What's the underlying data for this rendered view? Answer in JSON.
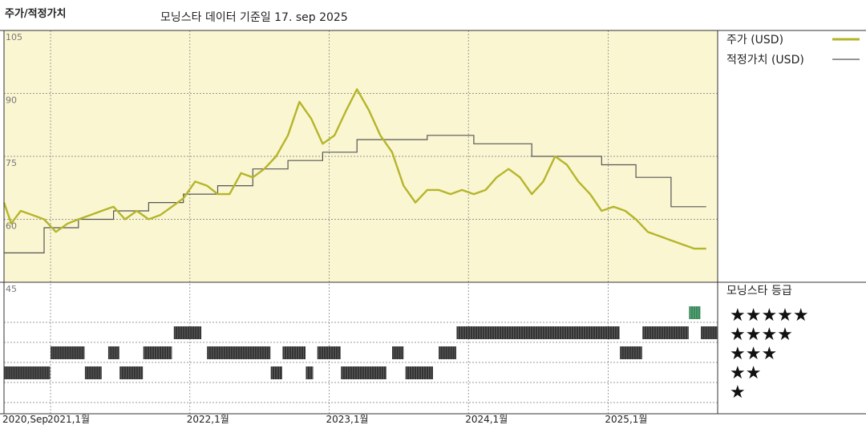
{
  "header": {
    "title": "주가/적정가치",
    "subtitle": "모닝스타 데이터 기준일 17. sep 2025"
  },
  "legend": {
    "price_label": "주가 (USD)",
    "fair_label": "적정가치 (USD)",
    "rating_title": "모닝스타 등급"
  },
  "colors": {
    "price": "#b5b52a",
    "fair": "#555555",
    "plot_bg": "#faf6d2",
    "rating_bar": "#333333",
    "rating_highlight": "#3a8a5a"
  },
  "rating_star_labels": [
    "★★★★★",
    "★★★★",
    "★★★",
    "★★",
    "★"
  ],
  "chart_data": {
    "type": "line",
    "title": "주가/적정가치",
    "y_ticks": [
      "105",
      "90",
      "75",
      "60",
      "45"
    ],
    "ylim": [
      45,
      105
    ],
    "x_ticks": [
      "2020,Sep",
      "2021,1월",
      "2022,1월",
      "2023,1월",
      "2024,1월",
      "2025,1월"
    ],
    "xlim": [
      "2020-09-01",
      "2025-10-15"
    ],
    "series": [
      {
        "name": "주가 (USD)",
        "points": [
          [
            "2020-09-01",
            64
          ],
          [
            "2020-09-20",
            59
          ],
          [
            "2020-10-15",
            62
          ],
          [
            "2020-11-15",
            61
          ],
          [
            "2020-12-15",
            60
          ],
          [
            "2021-01-15",
            57
          ],
          [
            "2021-02-15",
            59
          ],
          [
            "2021-03-15",
            60
          ],
          [
            "2021-04-15",
            61
          ],
          [
            "2021-05-15",
            62
          ],
          [
            "2021-06-15",
            63
          ],
          [
            "2021-07-15",
            60
          ],
          [
            "2021-08-15",
            62
          ],
          [
            "2021-09-15",
            60
          ],
          [
            "2021-10-15",
            61
          ],
          [
            "2021-11-15",
            63
          ],
          [
            "2021-12-15",
            65
          ],
          [
            "2022-01-15",
            69
          ],
          [
            "2022-02-15",
            68
          ],
          [
            "2022-03-15",
            66
          ],
          [
            "2022-04-15",
            66
          ],
          [
            "2022-05-15",
            71
          ],
          [
            "2022-06-15",
            70
          ],
          [
            "2022-07-15",
            72
          ],
          [
            "2022-08-15",
            75
          ],
          [
            "2022-09-15",
            80
          ],
          [
            "2022-10-15",
            88
          ],
          [
            "2022-11-15",
            84
          ],
          [
            "2022-12-15",
            78
          ],
          [
            "2023-01-15",
            80
          ],
          [
            "2023-02-15",
            86
          ],
          [
            "2023-03-15",
            91
          ],
          [
            "2023-04-15",
            86
          ],
          [
            "2023-05-15",
            80
          ],
          [
            "2023-06-15",
            76
          ],
          [
            "2023-07-15",
            68
          ],
          [
            "2023-08-15",
            64
          ],
          [
            "2023-09-15",
            67
          ],
          [
            "2023-10-15",
            67
          ],
          [
            "2023-11-15",
            66
          ],
          [
            "2023-12-15",
            67
          ],
          [
            "2024-01-15",
            66
          ],
          [
            "2024-02-15",
            67
          ],
          [
            "2024-03-15",
            70
          ],
          [
            "2024-04-15",
            72
          ],
          [
            "2024-05-15",
            70
          ],
          [
            "2024-06-15",
            66
          ],
          [
            "2024-07-15",
            69
          ],
          [
            "2024-08-15",
            75
          ],
          [
            "2024-09-15",
            73
          ],
          [
            "2024-10-15",
            69
          ],
          [
            "2024-11-15",
            66
          ],
          [
            "2024-12-15",
            62
          ],
          [
            "2025-01-15",
            63
          ],
          [
            "2025-02-15",
            62
          ],
          [
            "2025-03-15",
            60
          ],
          [
            "2025-04-15",
            57
          ],
          [
            "2025-05-15",
            56
          ],
          [
            "2025-06-15",
            55
          ],
          [
            "2025-07-15",
            54
          ],
          [
            "2025-08-15",
            53
          ],
          [
            "2025-09-15",
            53
          ]
        ]
      },
      {
        "name": "적정가치 (USD)",
        "points": [
          [
            "2020-09-01",
            52
          ],
          [
            "2020-12-15",
            52
          ],
          [
            "2020-12-15",
            58
          ],
          [
            "2021-03-15",
            58
          ],
          [
            "2021-03-15",
            60
          ],
          [
            "2021-06-15",
            60
          ],
          [
            "2021-06-15",
            62
          ],
          [
            "2021-09-15",
            62
          ],
          [
            "2021-09-15",
            64
          ],
          [
            "2021-12-15",
            64
          ],
          [
            "2021-12-15",
            66
          ],
          [
            "2022-03-15",
            66
          ],
          [
            "2022-03-15",
            68
          ],
          [
            "2022-06-15",
            68
          ],
          [
            "2022-06-15",
            72
          ],
          [
            "2022-09-15",
            72
          ],
          [
            "2022-09-15",
            74
          ],
          [
            "2022-12-15",
            74
          ],
          [
            "2022-12-15",
            76
          ],
          [
            "2023-03-15",
            76
          ],
          [
            "2023-03-15",
            79
          ],
          [
            "2023-09-15",
            79
          ],
          [
            "2023-09-15",
            80
          ],
          [
            "2024-01-15",
            80
          ],
          [
            "2024-01-15",
            78
          ],
          [
            "2024-06-15",
            78
          ],
          [
            "2024-06-15",
            75
          ],
          [
            "2024-12-15",
            75
          ],
          [
            "2024-12-15",
            73
          ],
          [
            "2025-03-15",
            73
          ],
          [
            "2025-03-15",
            70
          ],
          [
            "2025-06-15",
            70
          ],
          [
            "2025-06-15",
            63
          ],
          [
            "2025-09-15",
            63
          ]
        ]
      }
    ],
    "rating_history": {
      "levels": [
        "5",
        "4",
        "3",
        "2",
        "1"
      ],
      "segments": [
        {
          "stars": 2,
          "start": "2020-09-01",
          "end": "2020-12-31"
        },
        {
          "stars": 3,
          "start": "2021-01-01",
          "end": "2021-03-31"
        },
        {
          "stars": 2,
          "start": "2021-04-01",
          "end": "2021-05-15"
        },
        {
          "stars": 3,
          "start": "2021-06-01",
          "end": "2021-06-30"
        },
        {
          "stars": 2,
          "start": "2021-07-01",
          "end": "2021-08-31"
        },
        {
          "stars": 3,
          "start": "2021-09-01",
          "end": "2021-11-15"
        },
        {
          "stars": 4,
          "start": "2021-11-20",
          "end": "2022-01-31"
        },
        {
          "stars": 3,
          "start": "2022-02-15",
          "end": "2022-07-31"
        },
        {
          "stars": 2,
          "start": "2022-08-01",
          "end": "2022-08-31"
        },
        {
          "stars": 3,
          "start": "2022-09-01",
          "end": "2022-10-31"
        },
        {
          "stars": 2,
          "start": "2022-11-01",
          "end": "2022-11-20"
        },
        {
          "stars": 3,
          "start": "2022-12-01",
          "end": "2023-01-31"
        },
        {
          "stars": 2,
          "start": "2023-02-01",
          "end": "2023-05-31"
        },
        {
          "stars": 3,
          "start": "2023-06-15",
          "end": "2023-07-15"
        },
        {
          "stars": 2,
          "start": "2023-07-20",
          "end": "2023-09-30"
        },
        {
          "stars": 3,
          "start": "2023-10-15",
          "end": "2023-11-30"
        },
        {
          "stars": 4,
          "start": "2023-12-01",
          "end": "2025-01-31"
        },
        {
          "stars": 3,
          "start": "2025-02-01",
          "end": "2025-03-31"
        },
        {
          "stars": 4,
          "start": "2025-04-01",
          "end": "2025-07-31"
        },
        {
          "stars": 5,
          "start": "2025-08-01",
          "end": "2025-08-31"
        },
        {
          "stars": 4,
          "start": "2025-09-01",
          "end": "2025-10-15"
        }
      ]
    }
  }
}
